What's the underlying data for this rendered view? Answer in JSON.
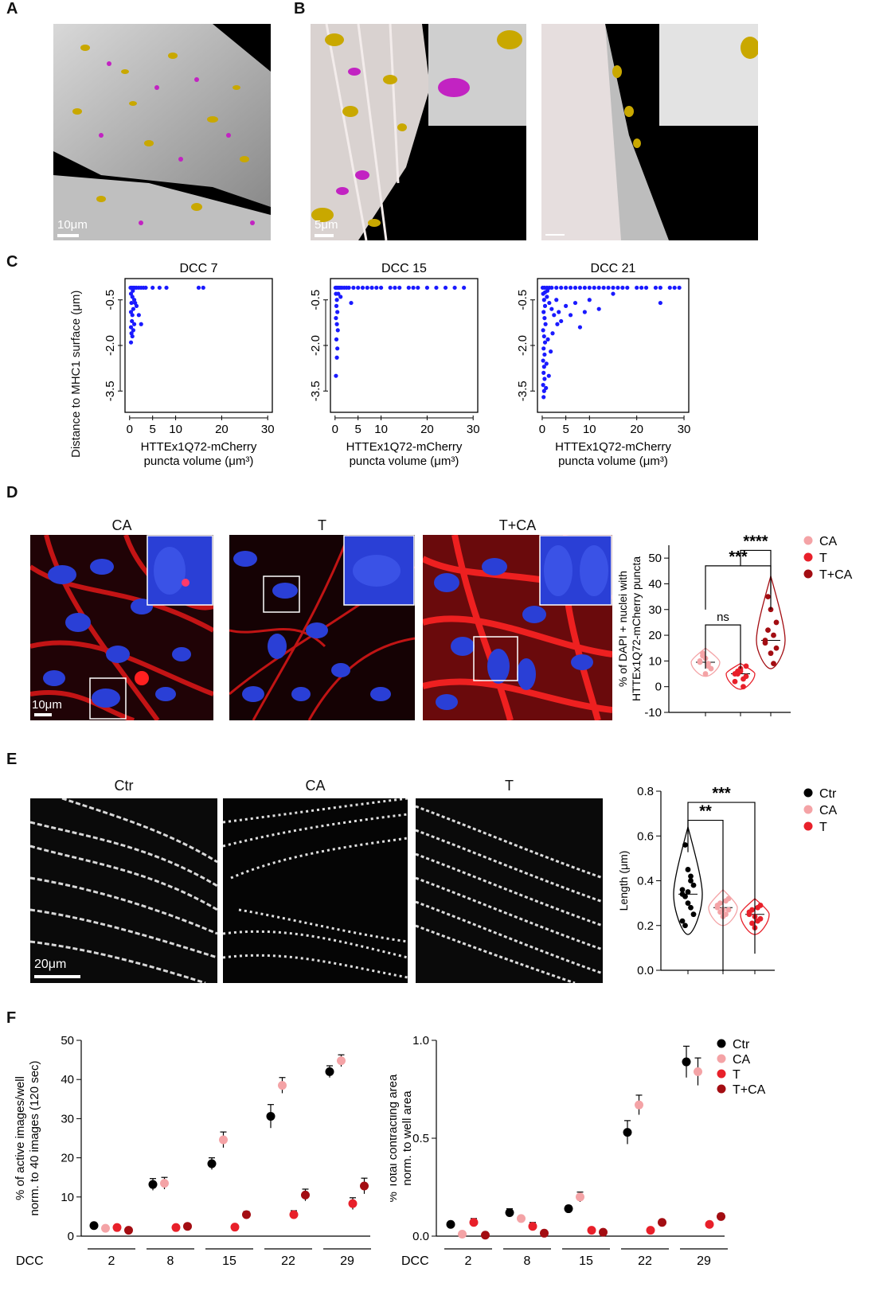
{
  "panels": {
    "A": {
      "letter": "A",
      "scalebar": "10μm"
    },
    "B": {
      "letter": "B",
      "scalebar": "5μm"
    },
    "C": {
      "letter": "C",
      "ylabel": "Distance to MHC1 surface (μm)",
      "xlabel_line1": "HTTEx1Q72-mCherry",
      "xlabel_line2": "puncta volume (μm³)",
      "titles": [
        "DCC 7",
        "DCC 15",
        "DCC 21"
      ]
    },
    "D": {
      "letter": "D",
      "image_titles": [
        "CA",
        "T",
        "T+CA"
      ],
      "scalebar": "10μm"
    },
    "E": {
      "letter": "E",
      "image_titles": [
        "Ctr",
        "CA",
        "T"
      ],
      "scalebar": "20μm"
    },
    "F": {
      "letter": "F"
    }
  },
  "colors": {
    "ctr": "#000000",
    "ca": "#f4a3a6",
    "t": "#e8202a",
    "tca": "#a30d12",
    "scatter": "#1a1aff"
  },
  "chart_data": [
    {
      "id": "C1",
      "type": "scatter",
      "title": "DCC 7",
      "xlabel": "HTTEx1Q72-mCherry puncta volume (μm³)",
      "ylabel": "Distance to MHC1 surface (μm)",
      "xlim": [
        -1,
        31
      ],
      "ylim": [
        -4.2,
        0.2
      ],
      "xticks": [
        0,
        5,
        10,
        20,
        30
      ],
      "yticks": [
        -0.5,
        -2.0,
        -3.5
      ],
      "points": [
        [
          0.2,
          -0.1
        ],
        [
          0.5,
          -0.1
        ],
        [
          0.8,
          -0.1
        ],
        [
          1.1,
          -0.1
        ],
        [
          1.5,
          -0.1
        ],
        [
          2,
          -0.1
        ],
        [
          2.5,
          -0.1
        ],
        [
          3,
          -0.1
        ],
        [
          3.5,
          -0.1
        ],
        [
          5,
          -0.1
        ],
        [
          6.5,
          -0.1
        ],
        [
          8,
          -0.1
        ],
        [
          15,
          -0.1
        ],
        [
          16,
          -0.1
        ],
        [
          0.3,
          -0.3
        ],
        [
          0.6,
          -0.4
        ],
        [
          1.0,
          -0.5
        ],
        [
          0.4,
          -0.6
        ],
        [
          0.8,
          -0.8
        ],
        [
          1.5,
          -0.7
        ],
        [
          0.3,
          -0.9
        ],
        [
          0.6,
          -1.0
        ],
        [
          2,
          -1.0
        ],
        [
          0.5,
          -1.2
        ],
        [
          1,
          -1.3
        ],
        [
          0.3,
          -1.4
        ],
        [
          2.5,
          -1.3
        ],
        [
          0.4,
          -1.6
        ],
        [
          0.8,
          -1.5
        ],
        [
          0.3,
          -1.9
        ],
        [
          0.6,
          -1.7
        ],
        [
          1.2,
          -0.6
        ],
        [
          0.7,
          -0.2
        ]
      ]
    },
    {
      "id": "C2",
      "type": "scatter",
      "title": "DCC 15",
      "xlabel": "HTTEx1Q72-mCherry puncta volume (μm³)",
      "ylabel": "",
      "xlim": [
        -1,
        31
      ],
      "ylim": [
        -4.2,
        0.2
      ],
      "xticks": [
        0,
        5,
        10,
        20,
        30
      ],
      "yticks": [
        -0.5,
        -2.0,
        -3.5
      ],
      "points": [
        [
          0.1,
          -0.1
        ],
        [
          0.3,
          -0.1
        ],
        [
          0.5,
          -0.1
        ],
        [
          0.8,
          -0.1
        ],
        [
          1.1,
          -0.1
        ],
        [
          1.5,
          -0.1
        ],
        [
          2,
          -0.1
        ],
        [
          2.5,
          -0.1
        ],
        [
          3,
          -0.1
        ],
        [
          4,
          -0.1
        ],
        [
          5,
          -0.1
        ],
        [
          6,
          -0.1
        ],
        [
          7,
          -0.1
        ],
        [
          8,
          -0.1
        ],
        [
          9,
          -0.1
        ],
        [
          10,
          -0.1
        ],
        [
          12,
          -0.1
        ],
        [
          13,
          -0.1
        ],
        [
          14,
          -0.1
        ],
        [
          16,
          -0.1
        ],
        [
          17,
          -0.1
        ],
        [
          18,
          -0.1
        ],
        [
          20,
          -0.1
        ],
        [
          22,
          -0.1
        ],
        [
          24,
          -0.1
        ],
        [
          26,
          -0.1
        ],
        [
          28,
          -0.1
        ],
        [
          0.2,
          -0.3
        ],
        [
          0.4,
          -0.5
        ],
        [
          0.3,
          -0.7
        ],
        [
          0.5,
          -0.9
        ],
        [
          0.2,
          -1.1
        ],
        [
          0.4,
          -1.3
        ],
        [
          0.6,
          -1.5
        ],
        [
          0.3,
          -1.8
        ],
        [
          0.5,
          -2.1
        ],
        [
          0.4,
          -2.4
        ],
        [
          0.2,
          -3.0
        ],
        [
          1.2,
          -0.4
        ],
        [
          3.5,
          -0.6
        ],
        [
          0.7,
          -0.3
        ]
      ]
    },
    {
      "id": "C3",
      "type": "scatter",
      "title": "DCC 21",
      "xlabel": "HTTEx1Q72-mCherry puncta volume (μm³)",
      "ylabel": "",
      "xlim": [
        -1,
        31
      ],
      "ylim": [
        -4.2,
        0.2
      ],
      "xticks": [
        0,
        5,
        10,
        20,
        30
      ],
      "yticks": [
        -0.5,
        -2.0,
        -3.5
      ],
      "points": [
        [
          0.1,
          -0.1
        ],
        [
          0.5,
          -0.1
        ],
        [
          1,
          -0.1
        ],
        [
          1.5,
          -0.1
        ],
        [
          2,
          -0.1
        ],
        [
          3,
          -0.1
        ],
        [
          4,
          -0.1
        ],
        [
          5,
          -0.1
        ],
        [
          6,
          -0.1
        ],
        [
          7,
          -0.1
        ],
        [
          8,
          -0.1
        ],
        [
          9,
          -0.1
        ],
        [
          10,
          -0.1
        ],
        [
          11,
          -0.1
        ],
        [
          12,
          -0.1
        ],
        [
          13,
          -0.1
        ],
        [
          14,
          -0.1
        ],
        [
          15,
          -0.1
        ],
        [
          16,
          -0.1
        ],
        [
          17,
          -0.1
        ],
        [
          18,
          -0.1
        ],
        [
          20,
          -0.1
        ],
        [
          21,
          -0.1
        ],
        [
          22,
          -0.1
        ],
        [
          24,
          -0.1
        ],
        [
          25,
          -0.1
        ],
        [
          27,
          -0.1
        ],
        [
          28,
          -0.1
        ],
        [
          29,
          -0.1
        ],
        [
          0.2,
          -0.3
        ],
        [
          0.4,
          -0.5
        ],
        [
          0.6,
          -0.7
        ],
        [
          0.3,
          -0.9
        ],
        [
          0.5,
          -1.1
        ],
        [
          0.7,
          -1.3
        ],
        [
          0.2,
          -1.5
        ],
        [
          0.4,
          -1.7
        ],
        [
          0.6,
          -1.9
        ],
        [
          0.3,
          -2.1
        ],
        [
          0.5,
          -2.3
        ],
        [
          0.2,
          -2.5
        ],
        [
          0.4,
          -2.7
        ],
        [
          0.3,
          -2.9
        ],
        [
          0.5,
          -3.1
        ],
        [
          0.2,
          -3.3
        ],
        [
          0.4,
          -3.5
        ],
        [
          0.3,
          -3.7
        ],
        [
          1,
          -0.4
        ],
        [
          1.5,
          -0.6
        ],
        [
          2,
          -0.8
        ],
        [
          2.5,
          -1.0
        ],
        [
          3,
          -0.5
        ],
        [
          3.5,
          -0.9
        ],
        [
          4,
          -1.2
        ],
        [
          5,
          -0.7
        ],
        [
          6,
          -1.0
        ],
        [
          7,
          -0.6
        ],
        [
          8,
          -1.4
        ],
        [
          9,
          -0.9
        ],
        [
          10,
          -0.5
        ],
        [
          12,
          -0.8
        ],
        [
          1.2,
          -1.8
        ],
        [
          1.8,
          -2.2
        ],
        [
          0.9,
          -2.6
        ],
        [
          1.4,
          -3.0
        ],
        [
          2.2,
          -1.6
        ],
        [
          3.2,
          -1.3
        ],
        [
          0.8,
          -3.4
        ],
        [
          25,
          -0.6
        ],
        [
          15,
          -0.3
        ],
        [
          0.6,
          -0.25
        ],
        [
          1.1,
          -0.2
        ]
      ]
    },
    {
      "id": "D-violin",
      "type": "violin",
      "ylabel": "% of DAPI + nuclei with HTTEx1Q72-mCherry puncta",
      "ylim": [
        -10,
        55
      ],
      "yticks": [
        -10,
        0,
        10,
        20,
        30,
        40,
        50
      ],
      "groups": [
        {
          "name": "CA",
          "color_key": "ca",
          "median": 9.5,
          "range": [
            4,
            15
          ],
          "points": [
            9.5,
            12,
            11,
            8,
            7,
            10,
            13,
            5,
            9
          ]
        },
        {
          "name": "T",
          "color_key": "t",
          "median": 5,
          "range": [
            -1,
            9
          ],
          "points": [
            5,
            6,
            7,
            3,
            4,
            2,
            5,
            6,
            0,
            8
          ]
        },
        {
          "name": "T+CA",
          "color_key": "tca",
          "median": 18,
          "range": [
            7,
            43
          ],
          "points": [
            18,
            35,
            30,
            20,
            15,
            17,
            22,
            13,
            9,
            25
          ]
        }
      ],
      "annotations": [
        {
          "text": "ns",
          "from": 0,
          "to": 1,
          "y": 24
        },
        {
          "text": "***",
          "from": 0,
          "to": 2,
          "y": 47
        },
        {
          "text": "****",
          "from": 1,
          "to": 2,
          "y": 53
        }
      ],
      "legend": [
        "CA",
        "T",
        "T+CA"
      ]
    },
    {
      "id": "E-violin",
      "type": "violin",
      "ylabel": "Length (μm)",
      "ylim": [
        0,
        0.8
      ],
      "yticks": [
        0.0,
        0.2,
        0.4,
        0.6,
        0.8
      ],
      "groups": [
        {
          "name": "Ctr",
          "color_key": "ctr",
          "median": 0.34,
          "range": [
            0.16,
            0.64
          ],
          "points": [
            0.34,
            0.56,
            0.45,
            0.4,
            0.38,
            0.36,
            0.33,
            0.3,
            0.28,
            0.25,
            0.22,
            0.2,
            0.35,
            0.42
          ]
        },
        {
          "name": "CA",
          "color_key": "ca",
          "median": 0.28,
          "range": [
            0.2,
            0.36
          ],
          "points": [
            0.28,
            0.3,
            0.27,
            0.25,
            0.32,
            0.29,
            0.26,
            0.24,
            0.31,
            0.27
          ]
        },
        {
          "name": "T",
          "color_key": "t",
          "median": 0.25,
          "range": [
            0.16,
            0.32
          ],
          "points": [
            0.25,
            0.27,
            0.24,
            0.22,
            0.29,
            0.26,
            0.21,
            0.19,
            0.28,
            0.23
          ]
        }
      ],
      "annotations": [
        {
          "text": "**",
          "from": 0,
          "to": 1,
          "y": 0.67
        },
        {
          "text": "***",
          "from": 0,
          "to": 2,
          "y": 0.75
        }
      ],
      "legend": [
        "Ctr",
        "CA",
        "T"
      ]
    },
    {
      "id": "F-left",
      "type": "scatter",
      "ylabel": "% of active images/well norm. to 40 images (120 sec)",
      "xlabel": "DCC",
      "categories": [
        "2",
        "8",
        "15",
        "22",
        "29"
      ],
      "ylim": [
        0,
        50
      ],
      "yticks": [
        0,
        10,
        20,
        30,
        40,
        50
      ],
      "series": [
        {
          "name": "Ctr",
          "color_key": "ctr",
          "values": [
            2.7,
            13.2,
            18.5,
            30.6,
            42.0
          ],
          "errors": [
            0.5,
            1.5,
            1.5,
            3,
            1.5
          ]
        },
        {
          "name": "CA",
          "color_key": "ca",
          "values": [
            2.0,
            13.5,
            24.6,
            38.5,
            44.8
          ],
          "errors": [
            0.4,
            1.5,
            2,
            2,
            1.5
          ]
        },
        {
          "name": "T",
          "color_key": "t",
          "values": [
            2.2,
            2.2,
            2.3,
            5.5,
            8.3
          ],
          "errors": [
            0.4,
            0.4,
            0.4,
            1,
            1.5
          ]
        },
        {
          "name": "T+CA",
          "color_key": "tca",
          "values": [
            1.5,
            2.5,
            5.5,
            10.5,
            12.8
          ],
          "errors": [
            0.4,
            0.5,
            0.8,
            1.5,
            2
          ]
        }
      ]
    },
    {
      "id": "F-right",
      "type": "scatter",
      "ylabel": "% Total contracting area norm. to well area",
      "xlabel": "DCC",
      "categories": [
        "2",
        "8",
        "15",
        "22",
        "29"
      ],
      "ylim": [
        0,
        1
      ],
      "yticks": [
        0.0,
        0.5,
        1.0
      ],
      "series": [
        {
          "name": "Ctr",
          "color_key": "ctr",
          "values": [
            0.06,
            0.12,
            0.14,
            0.53,
            0.89
          ],
          "errors": [
            0.01,
            0.02,
            0.015,
            0.06,
            0.08
          ]
        },
        {
          "name": "CA",
          "color_key": "ca",
          "values": [
            0.01,
            0.09,
            0.2,
            0.67,
            0.84
          ],
          "errors": [
            0.005,
            0.01,
            0.025,
            0.05,
            0.07
          ]
        },
        {
          "name": "T",
          "color_key": "t",
          "values": [
            0.07,
            0.05,
            0.03,
            0.03,
            0.06
          ],
          "errors": [
            0.02,
            0.02,
            0.005,
            0.005,
            0.01
          ]
        },
        {
          "name": "T+CA",
          "color_key": "tca",
          "values": [
            0.005,
            0.015,
            0.02,
            0.07,
            0.1
          ],
          "errors": [
            0.003,
            0.004,
            0.005,
            0.01,
            0.015
          ]
        }
      ],
      "legend": [
        "Ctr",
        "CA",
        "T",
        "T+CA"
      ]
    }
  ]
}
